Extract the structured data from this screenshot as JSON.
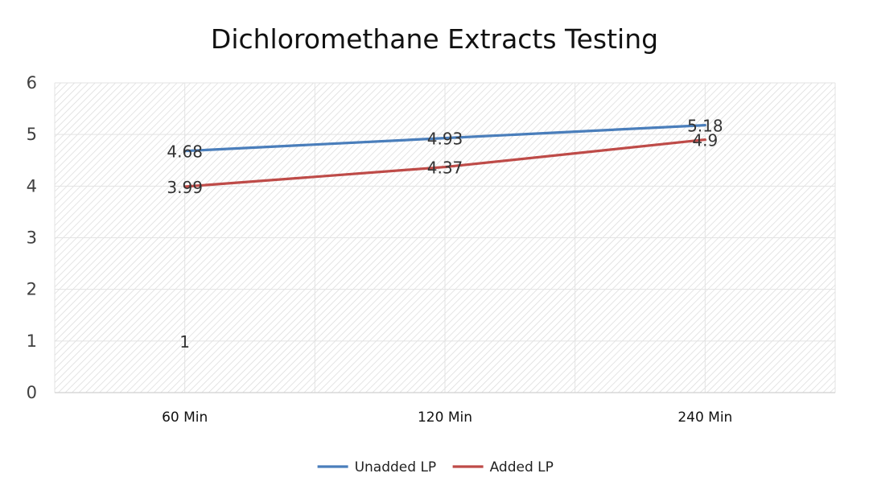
{
  "chart_data": {
    "type": "line",
    "title": "Dichloromethane Extracts Testing",
    "categories": [
      "60 Min",
      "120 Min",
      "240 Min"
    ],
    "ylim": [
      0,
      6
    ],
    "yticks": [
      "0",
      "1",
      "2",
      "3",
      "4",
      "5",
      "6"
    ],
    "grid": true,
    "legend_position": "bottom",
    "series": [
      {
        "name": "Unadded LP",
        "values": [
          4.68,
          4.93,
          5.18
        ],
        "labels": [
          "4.68",
          "4.93",
          "5.18"
        ],
        "color": "#4A7EBB"
      },
      {
        "name": "Added LP",
        "values": [
          3.99,
          4.37,
          4.9
        ],
        "labels": [
          "3.99",
          "4.37",
          "4.9"
        ],
        "color": "#BE4B48"
      }
    ],
    "annotations": [
      {
        "text": "1",
        "category": "60 Min",
        "y": 1
      }
    ]
  }
}
